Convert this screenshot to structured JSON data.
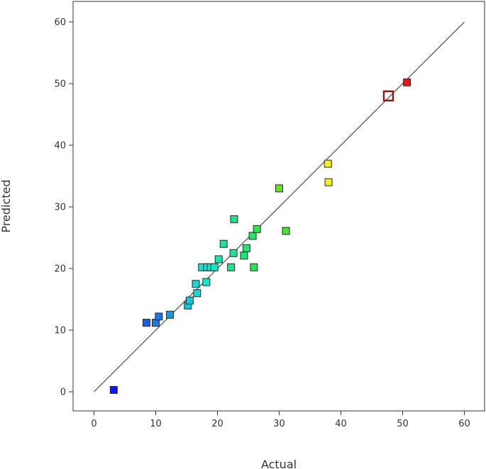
{
  "chart_data": {
    "type": "scatter",
    "title": "",
    "xlabel": "Actual",
    "ylabel": "Predicted",
    "xlim": [
      -3,
      63
    ],
    "ylim": [
      -3,
      63
    ],
    "xticks": [
      "0",
      "10",
      "20",
      "30",
      "40",
      "50",
      "60"
    ],
    "yticks": [
      "0",
      "10",
      "20",
      "30",
      "40",
      "50",
      "60"
    ],
    "grid": false,
    "reference_line": {
      "from": [
        0,
        0
      ],
      "to": [
        60,
        60
      ],
      "color": "#333333"
    },
    "points": [
      {
        "x": 3.2,
        "y": 0.3,
        "color": "#1515f0",
        "hollow": false
      },
      {
        "x": 8.5,
        "y": 11.2,
        "color": "#1660e0",
        "hollow": false
      },
      {
        "x": 10.0,
        "y": 11.2,
        "color": "#1c78e6",
        "hollow": false
      },
      {
        "x": 10.5,
        "y": 12.2,
        "color": "#1c78e6",
        "hollow": false
      },
      {
        "x": 12.3,
        "y": 12.5,
        "color": "#1a9ae0",
        "hollow": false
      },
      {
        "x": 15.2,
        "y": 14.0,
        "color": "#12c6e0",
        "hollow": false
      },
      {
        "x": 15.5,
        "y": 14.8,
        "color": "#12c6e0",
        "hollow": false
      },
      {
        "x": 16.7,
        "y": 16.0,
        "color": "#10dada",
        "hollow": false
      },
      {
        "x": 16.5,
        "y": 17.5,
        "color": "#10dada",
        "hollow": false
      },
      {
        "x": 17.5,
        "y": 20.2,
        "color": "#10e6d6",
        "hollow": false
      },
      {
        "x": 18.2,
        "y": 17.8,
        "color": "#10e6d0",
        "hollow": false
      },
      {
        "x": 18.3,
        "y": 20.2,
        "color": "#10e6d0",
        "hollow": false
      },
      {
        "x": 18.9,
        "y": 20.2,
        "color": "#10e6cc",
        "hollow": false
      },
      {
        "x": 19.5,
        "y": 20.2,
        "color": "#10e6c8",
        "hollow": false
      },
      {
        "x": 20.2,
        "y": 21.5,
        "color": "#12e6b0",
        "hollow": false
      },
      {
        "x": 21.0,
        "y": 24.0,
        "color": "#14e6a0",
        "hollow": false
      },
      {
        "x": 22.2,
        "y": 20.2,
        "color": "#18e690",
        "hollow": false
      },
      {
        "x": 22.6,
        "y": 22.5,
        "color": "#18e690",
        "hollow": false
      },
      {
        "x": 22.7,
        "y": 28.0,
        "color": "#18e688",
        "hollow": false
      },
      {
        "x": 24.3,
        "y": 22.1,
        "color": "#1ee678",
        "hollow": false
      },
      {
        "x": 24.7,
        "y": 23.3,
        "color": "#1ee670",
        "hollow": false
      },
      {
        "x": 25.7,
        "y": 25.3,
        "color": "#22e660",
        "hollow": false
      },
      {
        "x": 25.9,
        "y": 20.2,
        "color": "#26e652",
        "hollow": false
      },
      {
        "x": 26.4,
        "y": 26.4,
        "color": "#28e64a",
        "hollow": false
      },
      {
        "x": 30.0,
        "y": 33.0,
        "color": "#5ee61e",
        "hollow": false
      },
      {
        "x": 31.1,
        "y": 26.1,
        "color": "#40e630",
        "hollow": false
      },
      {
        "x": 37.9,
        "y": 37.0,
        "color": "#f0f01a",
        "hollow": false
      },
      {
        "x": 38.0,
        "y": 34.0,
        "color": "#f0f01a",
        "hollow": false
      },
      {
        "x": 47.7,
        "y": 48.0,
        "color": "#8b1a1a",
        "hollow": true
      },
      {
        "x": 50.7,
        "y": 50.2,
        "color": "#ee1111",
        "hollow": false
      }
    ]
  }
}
